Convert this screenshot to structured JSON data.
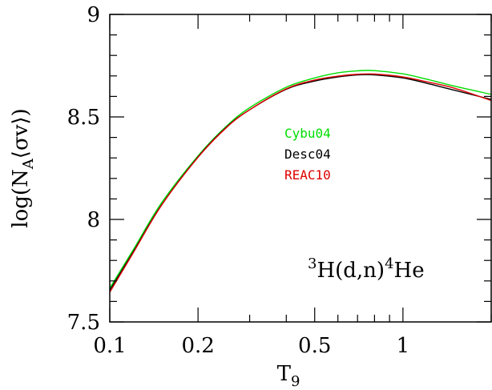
{
  "chart_data": {
    "type": "line",
    "xlabel": "T",
    "xlabel_sub": "9",
    "ylabel_pre": "log(N",
    "ylabel_sub": "A",
    "ylabel_post": "⟨σv⟩)",
    "xscale": "log",
    "xlim": [
      0.1,
      2.0
    ],
    "ylim": [
      7.5,
      9.0
    ],
    "x_ticks": [
      0.1,
      0.2,
      0.5,
      1
    ],
    "x_tick_labels": [
      "0.1",
      "0.2",
      "0.5",
      "1"
    ],
    "y_ticks": [
      7.5,
      8,
      8.5,
      9
    ],
    "y_tick_labels": [
      "7.5",
      "8",
      "8.5",
      "9"
    ],
    "annotation": {
      "mass_a": "3",
      "main_a": "H(d,n)",
      "mass_b": "4",
      "main_b": "He"
    },
    "legend_position": "center",
    "series": [
      {
        "name": "Cybu04",
        "color": "#00dd00",
        "x": [
          0.1,
          0.12,
          0.15,
          0.2,
          0.25,
          0.3,
          0.4,
          0.5,
          0.6,
          0.7,
          0.8,
          1.0,
          1.2,
          1.5,
          2.0
        ],
        "y": [
          7.665,
          7.85,
          8.08,
          8.31,
          8.455,
          8.545,
          8.645,
          8.69,
          8.715,
          8.725,
          8.726,
          8.71,
          8.685,
          8.65,
          8.61
        ]
      },
      {
        "name": "Desc04",
        "color": "#000000",
        "x": [
          0.1,
          0.12,
          0.15,
          0.2,
          0.25,
          0.3,
          0.4,
          0.5,
          0.6,
          0.7,
          0.8,
          1.0,
          1.2,
          1.5,
          2.0
        ],
        "y": [
          7.655,
          7.84,
          8.07,
          8.305,
          8.45,
          8.535,
          8.635,
          8.675,
          8.695,
          8.705,
          8.705,
          8.69,
          8.665,
          8.63,
          8.585
        ]
      },
      {
        "name": "REAC10",
        "color": "#dd0000",
        "x": [
          0.1,
          0.12,
          0.15,
          0.2,
          0.25,
          0.3,
          0.4,
          0.5,
          0.6,
          0.7,
          0.8,
          1.0,
          1.2,
          1.5,
          2.0
        ],
        "y": [
          7.645,
          7.835,
          8.068,
          8.303,
          8.448,
          8.535,
          8.637,
          8.68,
          8.699,
          8.708,
          8.709,
          8.695,
          8.672,
          8.64,
          8.58
        ]
      }
    ]
  }
}
